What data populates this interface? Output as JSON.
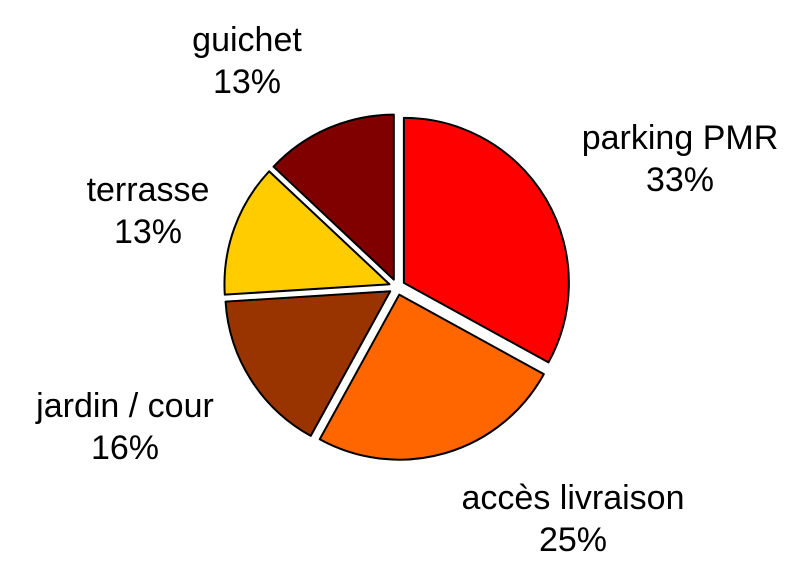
{
  "chart_data": {
    "type": "pie",
    "categories": [
      "parking PMR",
      "accès livraison",
      "jardin / cour",
      "terrasse",
      "guichet"
    ],
    "values": [
      33,
      25,
      16,
      13,
      13
    ],
    "value_labels": [
      "33%",
      "25%",
      "16%",
      "13%",
      "13%"
    ],
    "colors": [
      "#ff0000",
      "#ff6600",
      "#993300",
      "#ffcc00",
      "#800000"
    ]
  }
}
